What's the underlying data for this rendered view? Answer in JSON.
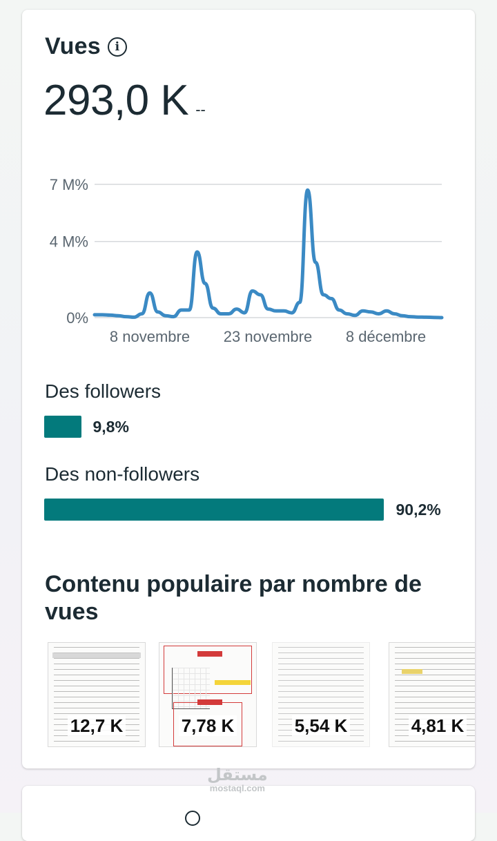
{
  "views_card": {
    "title": "Vues",
    "total": "293,0 K",
    "delta": "--",
    "colors": {
      "line": "#3b8ac4",
      "bar": "#037a7c",
      "text": "#1c2b33"
    }
  },
  "chart_data": {
    "type": "line",
    "title": "",
    "xlabel": "",
    "ylabel": "",
    "y_ticks": [
      "0%",
      "4 M%",
      "7 M%"
    ],
    "x_ticks": [
      "8 novembre",
      "23 novembre",
      "8 décembre"
    ],
    "grid": true,
    "legend": "none",
    "ylim": [
      0,
      7
    ],
    "series": [
      {
        "values": [
          0.15,
          0.15,
          0.13,
          0.1,
          0.05,
          0.02,
          0.2,
          1.3,
          0.3,
          0.1,
          0.05,
          0.4,
          0.4,
          3.45,
          1.8,
          0.5,
          0.2,
          0.2,
          0.45,
          0.25,
          1.4,
          1.2,
          0.45,
          0.35,
          0.35,
          0.25,
          0.8,
          6.7,
          2.9,
          1.2,
          1.0,
          0.4,
          0.2,
          0.12,
          0.35,
          0.3,
          0.2,
          0.35,
          0.2,
          0.1,
          0.05,
          0.03,
          0.02,
          0.01,
          0.0
        ]
      }
    ]
  },
  "audience": {
    "followers": {
      "label": "Des followers",
      "percent": "9,8%",
      "value": 9.8
    },
    "non_followers": {
      "label": "Des non-followers",
      "percent": "90,2%",
      "value": 90.2
    }
  },
  "popular": {
    "title": "Contenu populaire par nombre de vues",
    "items": [
      {
        "views": "12,7 K"
      },
      {
        "views": "7,78 K"
      },
      {
        "views": "5,54 K"
      },
      {
        "views": "4,81 K"
      }
    ]
  },
  "watermark": {
    "arabic": "مستقل",
    "latin": "mostaql.com"
  }
}
